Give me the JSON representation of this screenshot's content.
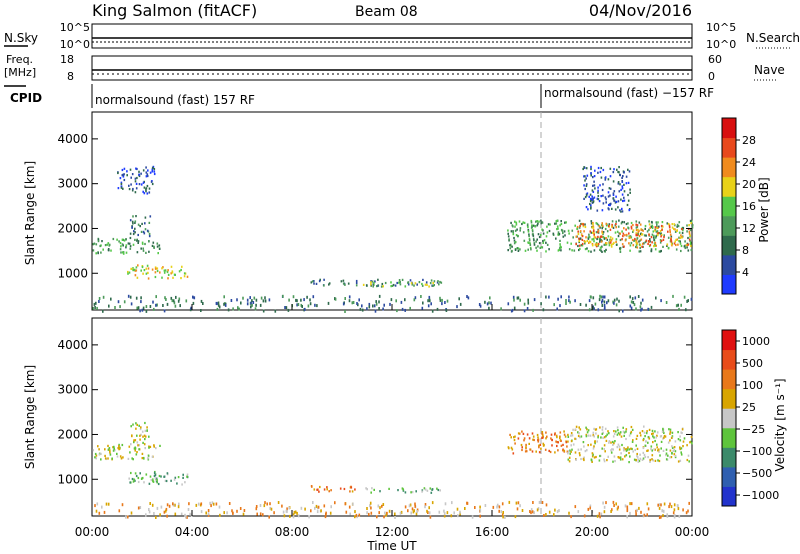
{
  "header": {
    "station": "King Salmon (fitACF)",
    "beam": "Beam 08",
    "date": "04/Nov/2016"
  },
  "colors": {
    "power": [
      "#1f3bff",
      "#2c4aa0",
      "#2f6a4c",
      "#4d9a5a",
      "#55c84a",
      "#e8d219",
      "#f08b1e",
      "#e8481c",
      "#d80f0f"
    ],
    "velocity": [
      "#2233cc",
      "#2f5fb0",
      "#3b8a6a",
      "#5ec43c",
      "#c7c7c7",
      "#d8a500",
      "#e8781a",
      "#e84c1a",
      "#e01010"
    ]
  },
  "chart_data": [
    {
      "type": "line",
      "name": "noise-panel",
      "left_label": "N.Sky",
      "right_label": "N.Search",
      "yticks_left": [
        "10^5",
        "10^0"
      ],
      "yticks_right": [
        "10^5",
        "10^0"
      ],
      "xlim": [
        0,
        24
      ]
    },
    {
      "type": "scatter",
      "name": "freq-panel",
      "left_label": "Freq.",
      "left_unit": "[MHz]",
      "yticks_left": [
        "18",
        "8"
      ],
      "right_label": "Nave",
      "yticks_right": [
        "60",
        "0"
      ],
      "xlim": [
        0,
        24
      ]
    },
    {
      "type": "table",
      "name": "cpid-strip",
      "label": "CPID",
      "segments": [
        {
          "start": 0.0,
          "text": "normalsound (fast) 157 RF"
        },
        {
          "start": 18.0,
          "text": "normalsound (fast) −157 RF"
        }
      ]
    },
    {
      "type": "heatmap",
      "name": "power-panel",
      "ylabel": "Slant Range [km]",
      "yticks": [
        "1000",
        "2000",
        "3000",
        "4000"
      ],
      "ylim": [
        180,
        4600
      ],
      "xlim": [
        0,
        24
      ],
      "colorbar_label": "Power [dB]",
      "colorbar_ticks": [
        "4",
        "8",
        "12",
        "16",
        "20",
        "24",
        "28"
      ],
      "colorbar_range": [
        0,
        32
      ],
      "echo_regions": [
        {
          "t0": 0.0,
          "t1": 2.7,
          "r0": 1450,
          "r1": 1800,
          "level": 3
        },
        {
          "t0": 1.4,
          "t1": 3.8,
          "r0": 900,
          "r1": 1200,
          "level": 5
        },
        {
          "t0": 1.5,
          "t1": 2.3,
          "r0": 1800,
          "r1": 2300,
          "level": 2
        },
        {
          "t0": 1.0,
          "t1": 2.5,
          "r0": 2800,
          "r1": 3400,
          "level": 1
        },
        {
          "t0": 8.7,
          "t1": 14.0,
          "r0": 740,
          "r1": 880,
          "level": 2
        },
        {
          "t0": 10.8,
          "t1": 13.9,
          "r0": 720,
          "r1": 830,
          "level": 4
        },
        {
          "t0": 16.6,
          "t1": 24.0,
          "r0": 1500,
          "r1": 2200,
          "level": 3
        },
        {
          "t0": 19.3,
          "t1": 24.0,
          "r0": 1600,
          "r1": 2150,
          "level": 6
        },
        {
          "t0": 19.6,
          "t1": 21.5,
          "r0": 2400,
          "r1": 3400,
          "level": 1
        },
        {
          "t0": 0.0,
          "t1": 24.0,
          "r0": 180,
          "r1": 520,
          "level": 2
        }
      ]
    },
    {
      "type": "heatmap",
      "name": "velocity-panel",
      "ylabel": "Slant Range [km]",
      "yticks": [
        "1000",
        "2000",
        "3000",
        "4000"
      ],
      "ylim": [
        180,
        4600
      ],
      "xlim": [
        0,
        24
      ],
      "xlabel": "Time UT",
      "xticks": [
        "00:00",
        "04:00",
        "08:00",
        "12:00",
        "16:00",
        "20:00",
        "00:00"
      ],
      "colorbar_label": "Velocity [m s⁻¹]",
      "colorbar_ticks": [
        "1000",
        "500",
        "100",
        "25",
        "−25",
        "−100",
        "−500",
        "−1000"
      ],
      "echo_regions": [
        {
          "t0": 0.0,
          "t1": 2.7,
          "r0": 1450,
          "r1": 1800,
          "level": 4
        },
        {
          "t0": 1.4,
          "t1": 3.8,
          "r0": 900,
          "r1": 1200,
          "level": 3
        },
        {
          "t0": 1.5,
          "t1": 2.3,
          "r0": 1800,
          "r1": 2300,
          "level": 4
        },
        {
          "t0": 8.7,
          "t1": 10.5,
          "r0": 740,
          "r1": 880,
          "level": 6
        },
        {
          "t0": 10.8,
          "t1": 13.9,
          "r0": 720,
          "r1": 830,
          "level": 3
        },
        {
          "t0": 16.6,
          "t1": 19.0,
          "r0": 1600,
          "r1": 2100,
          "level": 6
        },
        {
          "t0": 19.0,
          "t1": 24.0,
          "r0": 1400,
          "r1": 2200,
          "level": 4
        },
        {
          "t0": 0.0,
          "t1": 24.0,
          "r0": 180,
          "r1": 520,
          "level": 5
        }
      ]
    }
  ]
}
